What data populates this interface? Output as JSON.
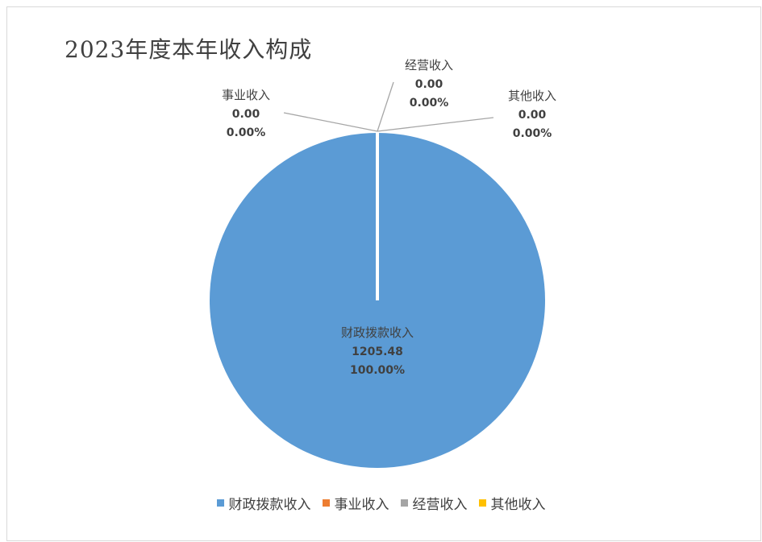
{
  "chart_data": {
    "type": "pie",
    "title": "2023年度本年收入构成",
    "slices": [
      {
        "name": "财政拨款收入",
        "value": 1205.48,
        "value_label": "1205.48",
        "percent_label": "100.00%",
        "color": "#5b9bd5"
      },
      {
        "name": "事业收入",
        "value": 0.0,
        "value_label": "0.00",
        "percent_label": "0.00%",
        "color": "#ed7d31"
      },
      {
        "name": "经营收入",
        "value": 0.0,
        "value_label": "0.00",
        "percent_label": "0.00%",
        "color": "#a5a5a5"
      },
      {
        "name": "其他收入",
        "value": 0.0,
        "value_label": "0.00",
        "percent_label": "0.00%",
        "color": "#ffc000"
      }
    ],
    "legend_position": "bottom"
  }
}
